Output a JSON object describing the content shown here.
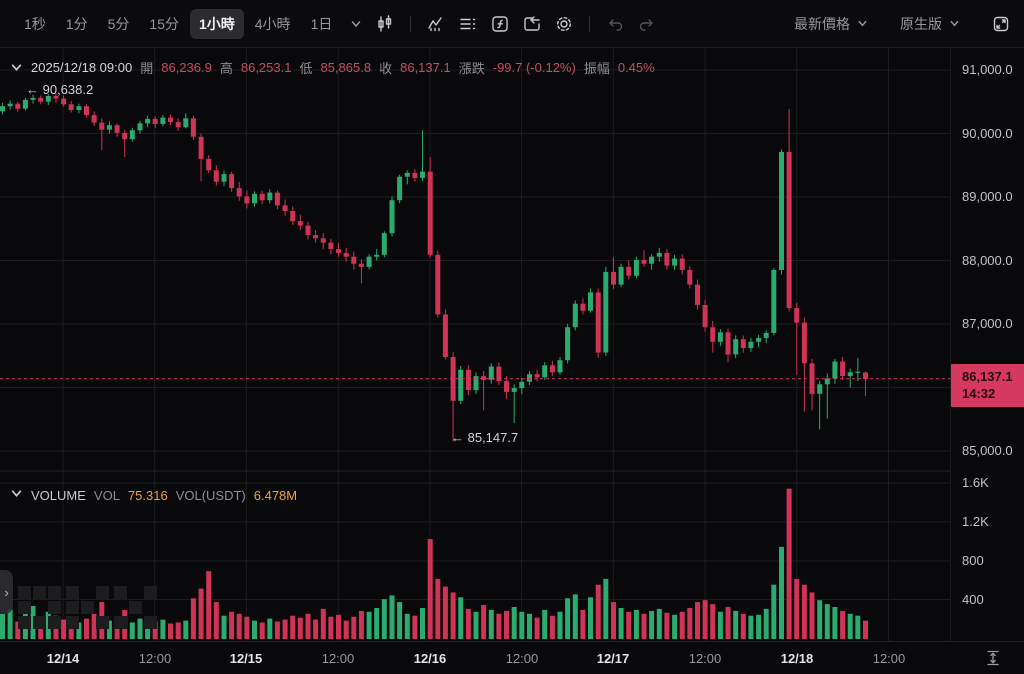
{
  "toolbar": {
    "timeframes": [
      {
        "label": "1秒",
        "active": false
      },
      {
        "label": "1分",
        "active": false
      },
      {
        "label": "5分",
        "active": false
      },
      {
        "label": "15分",
        "active": false
      },
      {
        "label": "1小時",
        "active": true
      },
      {
        "label": "4小時",
        "active": false
      },
      {
        "label": "1日",
        "active": false
      }
    ],
    "price_mode_label": "最新價格",
    "version_label": "原生版"
  },
  "ohlc_bar": {
    "date": "2025/12/18 09:00",
    "open_label": "開",
    "open": "86,236.9",
    "high_label": "高",
    "high": "86,253.1",
    "low_label": "低",
    "low": "85,865.8",
    "close_label": "收",
    "close": "86,137.1",
    "change_label": "漲跌",
    "change": "-99.7 (-0.12%)",
    "amplitude_label": "振幅",
    "amplitude": "0.45%"
  },
  "volume_header": {
    "name": "VOLUME",
    "vol_label": "VOL",
    "vol": "75.316",
    "usdt_label": "VOL(USDT)",
    "usdt": "6.478M"
  },
  "annotations": {
    "high": "← 90,638.2",
    "low": "← 85,147.7"
  },
  "price_tag": {
    "price": "86,137.1",
    "time": "14:32"
  },
  "colors": {
    "bull": "#2bab70",
    "bear": "#cf3356",
    "tag_bg": "#d63960",
    "accent_orange": "#efa23b",
    "ohlc_value_red": "#c34d63",
    "grid": "#1d1d21",
    "background": "#09090b"
  },
  "chart_data": {
    "type": "candlestick",
    "title": "BTC price chart with volume",
    "timeframe": "1小時",
    "legend": [
      "VOLUME"
    ],
    "grid": true,
    "price_axis_ticks": [
      "91,000.0",
      "90,000.0",
      "89,000.0",
      "88,000.0",
      "87,000.0",
      "85,000.0"
    ],
    "price_axis_tick_values": [
      91000,
      90000,
      89000,
      88000,
      87000,
      85000
    ],
    "volume_axis_ticks": [
      "1.6K",
      "1.2K",
      "800",
      "400"
    ],
    "volume_axis_tick_values": [
      1600,
      1200,
      800,
      400
    ],
    "time_axis_ticks": [
      {
        "label": "12/14",
        "major": true
      },
      {
        "label": "12:00",
        "major": false
      },
      {
        "label": "12/15",
        "major": true
      },
      {
        "label": "12:00",
        "major": false
      },
      {
        "label": "12/16",
        "major": true
      },
      {
        "label": "12:00",
        "major": false
      },
      {
        "label": "12/17",
        "major": true
      },
      {
        "label": "12:00",
        "major": false
      },
      {
        "label": "12/18",
        "major": true
      },
      {
        "label": "12:00",
        "major": false
      }
    ],
    "ylim": [
      84850,
      91150
    ],
    "current_price": 86137.1,
    "current_price_time": "14:32",
    "high_point": 90638.2,
    "low_point": 85147.7,
    "candles": [
      [
        90350,
        90480,
        90300,
        90430
      ],
      [
        90430,
        90520,
        90380,
        90470
      ],
      [
        90470,
        90500,
        90340,
        90390
      ],
      [
        90390,
        90560,
        90360,
        90530
      ],
      [
        90530,
        90610,
        90470,
        90560
      ],
      [
        90560,
        90600,
        90460,
        90500
      ],
      [
        90500,
        90620,
        90450,
        90590
      ],
      [
        90590,
        90638.2,
        90480,
        90550
      ],
      [
        90550,
        90600,
        90420,
        90460
      ],
      [
        90460,
        90510,
        90330,
        90370
      ],
      [
        90370,
        90470,
        90320,
        90430
      ],
      [
        90430,
        90460,
        90250,
        90290
      ],
      [
        90290,
        90350,
        90120,
        90170
      ],
      [
        90170,
        90240,
        89740,
        90060
      ],
      [
        90060,
        90190,
        90000,
        90130
      ],
      [
        90130,
        90160,
        89950,
        90010
      ],
      [
        90010,
        90060,
        89630,
        89910
      ],
      [
        89910,
        90090,
        89870,
        90050
      ],
      [
        90050,
        90200,
        90000,
        90160
      ],
      [
        90160,
        90280,
        90100,
        90230
      ],
      [
        90230,
        90270,
        90090,
        90150
      ],
      [
        90150,
        90290,
        90110,
        90250
      ],
      [
        90250,
        90300,
        90130,
        90180
      ],
      [
        90180,
        90240,
        90040,
        90100
      ],
      [
        90100,
        90320,
        90080,
        90240
      ],
      [
        90240,
        90280,
        89900,
        89950
      ],
      [
        89950,
        90000,
        89250,
        89600
      ],
      [
        89600,
        89660,
        89380,
        89420
      ],
      [
        89420,
        89500,
        89180,
        89240
      ],
      [
        89240,
        89420,
        89170,
        89360
      ],
      [
        89360,
        89400,
        89080,
        89140
      ],
      [
        89140,
        89240,
        88940,
        89010
      ],
      [
        89010,
        89100,
        88820,
        88900
      ],
      [
        88900,
        89090,
        88850,
        89050
      ],
      [
        89050,
        89100,
        88890,
        88950
      ],
      [
        88950,
        89120,
        88900,
        89070
      ],
      [
        89070,
        89100,
        88810,
        88870
      ],
      [
        88870,
        88960,
        88700,
        88780
      ],
      [
        88780,
        88850,
        88560,
        88620
      ],
      [
        88620,
        88720,
        88480,
        88550
      ],
      [
        88550,
        88610,
        88330,
        88400
      ],
      [
        88400,
        88480,
        88280,
        88350
      ],
      [
        88350,
        88430,
        88180,
        88280
      ],
      [
        88280,
        88340,
        88100,
        88180
      ],
      [
        88180,
        88280,
        88060,
        88120
      ],
      [
        88120,
        88200,
        87980,
        88060
      ],
      [
        88060,
        88140,
        87860,
        87950
      ],
      [
        87950,
        88020,
        87640,
        87900
      ],
      [
        87900,
        88100,
        87860,
        88060
      ],
      [
        88060,
        88180,
        88000,
        88090
      ],
      [
        88090,
        88460,
        88050,
        88430
      ],
      [
        88430,
        89010,
        88380,
        88950
      ],
      [
        88950,
        89350,
        88900,
        89320
      ],
      [
        89320,
        89420,
        89200,
        89380
      ],
      [
        89380,
        89440,
        89240,
        89300
      ],
      [
        89300,
        90050,
        89250,
        89400
      ],
      [
        89400,
        89630,
        88050,
        88090
      ],
      [
        88090,
        88160,
        87100,
        87150
      ],
      [
        87150,
        87230,
        86440,
        86480
      ],
      [
        86480,
        86560,
        85147.7,
        85790
      ],
      [
        85790,
        86340,
        85740,
        86280
      ],
      [
        86280,
        86350,
        85880,
        85960
      ],
      [
        85960,
        86240,
        85900,
        86180
      ],
      [
        86180,
        86260,
        85640,
        86120
      ],
      [
        86120,
        86380,
        86060,
        86330
      ],
      [
        86330,
        86390,
        86040,
        86100
      ],
      [
        86100,
        86180,
        85820,
        85930
      ],
      [
        85930,
        86050,
        85440,
        85990
      ],
      [
        85990,
        86150,
        85900,
        86090
      ],
      [
        86090,
        86260,
        86040,
        86210
      ],
      [
        86210,
        86280,
        86100,
        86160
      ],
      [
        86160,
        86400,
        86120,
        86350
      ],
      [
        86350,
        86420,
        86180,
        86240
      ],
      [
        86240,
        86480,
        86200,
        86430
      ],
      [
        86430,
        87000,
        86380,
        86950
      ],
      [
        86950,
        87370,
        86900,
        87320
      ],
      [
        87320,
        87400,
        87150,
        87210
      ],
      [
        87210,
        87560,
        87180,
        87500
      ],
      [
        87500,
        87560,
        86470,
        86550
      ],
      [
        86550,
        87900,
        86500,
        87820
      ],
      [
        87820,
        88050,
        87550,
        87620
      ],
      [
        87620,
        87950,
        87580,
        87900
      ],
      [
        87900,
        88000,
        87700,
        87760
      ],
      [
        87760,
        88060,
        87720,
        88010
      ],
      [
        88010,
        88160,
        87900,
        87950
      ],
      [
        87950,
        88100,
        87850,
        88060
      ],
      [
        88060,
        88200,
        87980,
        88120
      ],
      [
        88120,
        88180,
        87860,
        87920
      ],
      [
        87920,
        88090,
        87850,
        88030
      ],
      [
        88030,
        88100,
        87780,
        87850
      ],
      [
        87850,
        87910,
        87560,
        87620
      ],
      [
        87620,
        87700,
        87230,
        87300
      ],
      [
        87300,
        87380,
        86880,
        86950
      ],
      [
        86950,
        87050,
        86550,
        86720
      ],
      [
        86720,
        86920,
        86650,
        86870
      ],
      [
        86870,
        86930,
        86400,
        86520
      ],
      [
        86520,
        86820,
        86460,
        86760
      ],
      [
        86760,
        86820,
        86550,
        86620
      ],
      [
        86620,
        86780,
        86560,
        86720
      ],
      [
        86720,
        86830,
        86640,
        86780
      ],
      [
        86780,
        86900,
        86700,
        86860
      ],
      [
        86860,
        87880,
        86820,
        87850
      ],
      [
        87850,
        89750,
        87780,
        89710
      ],
      [
        89710,
        90386,
        87200,
        87250
      ],
      [
        87250,
        87330,
        86200,
        87020
      ],
      [
        87020,
        87100,
        85620,
        86380
      ],
      [
        86380,
        86450,
        85640,
        85900
      ],
      [
        85900,
        86100,
        85340,
        86050
      ],
      [
        86050,
        86220,
        85510,
        86140
      ],
      [
        86140,
        86450,
        86060,
        86410
      ],
      [
        86410,
        86480,
        86120,
        86180
      ],
      [
        86180,
        86300,
        86000,
        86240
      ],
      [
        86240,
        86460,
        86100,
        86250
      ],
      [
        86236.9,
        86253.1,
        85865.8,
        86137.1
      ]
    ],
    "volumes": [
      260,
      310,
      180,
      290,
      340,
      220,
      280,
      240,
      200,
      230,
      170,
      210,
      260,
      380,
      190,
      160,
      300,
      170,
      210,
      230,
      180,
      200,
      160,
      170,
      190,
      420,
      520,
      700,
      380,
      240,
      280,
      260,
      230,
      190,
      170,
      210,
      180,
      200,
      240,
      220,
      260,
      200,
      310,
      230,
      250,
      190,
      230,
      290,
      280,
      320,
      410,
      450,
      380,
      260,
      240,
      320,
      1030,
      620,
      540,
      480,
      430,
      310,
      280,
      350,
      300,
      260,
      290,
      330,
      280,
      260,
      220,
      300,
      240,
      280,
      420,
      460,
      300,
      430,
      560,
      620,
      380,
      320,
      280,
      300,
      260,
      290,
      310,
      270,
      250,
      280,
      320,
      380,
      400,
      360,
      280,
      330,
      290,
      260,
      240,
      250,
      310,
      560,
      950,
      1550,
      620,
      560,
      480,
      400,
      360,
      330,
      290,
      260,
      240,
      190
    ]
  }
}
